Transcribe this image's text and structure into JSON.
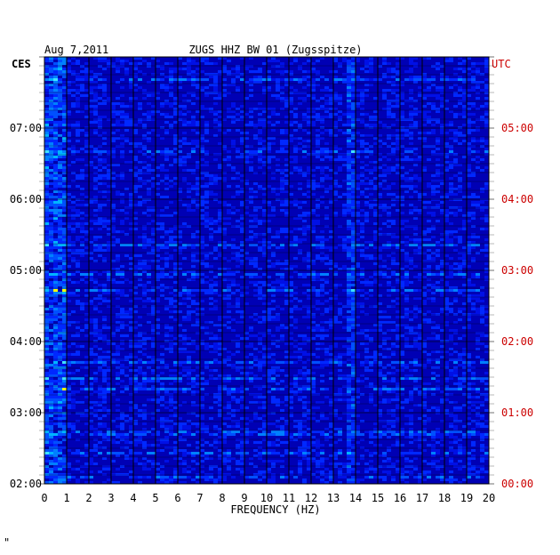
{
  "header": {
    "date": "Aug 7,2011",
    "station": "ZUGS HHZ BW 01 (Zugsspitze)"
  },
  "left_zone": "CES",
  "right_zone": "UTC",
  "colors": {
    "left_text": "#000000",
    "right_text": "#cc0000",
    "background_blue": "#0000c8",
    "hot": "#ff0000",
    "warm": "#ffff00",
    "cool": "#00c8ff"
  },
  "footer_mark": "\"",
  "chart_data": {
    "type": "heatmap",
    "title": "ZUGS HHZ BW 01 (Zugsspitze)",
    "xlabel": "FREQUENCY (HZ)",
    "ylabel": "",
    "x_ticks": [
      0,
      1,
      2,
      3,
      4,
      5,
      6,
      7,
      8,
      9,
      10,
      11,
      12,
      13,
      14,
      15,
      16,
      17,
      18,
      19,
      20
    ],
    "xlim": [
      0,
      20
    ],
    "left_axis": {
      "zone": "CES",
      "ticks": [
        "07:00",
        "06:00",
        "05:00",
        "04:00",
        "03:00",
        "02:00"
      ]
    },
    "right_axis": {
      "zone": "UTC",
      "ticks": [
        "05:00",
        "04:00",
        "03:00",
        "02:00",
        "01:00",
        "00:00"
      ]
    },
    "grid": true
  }
}
